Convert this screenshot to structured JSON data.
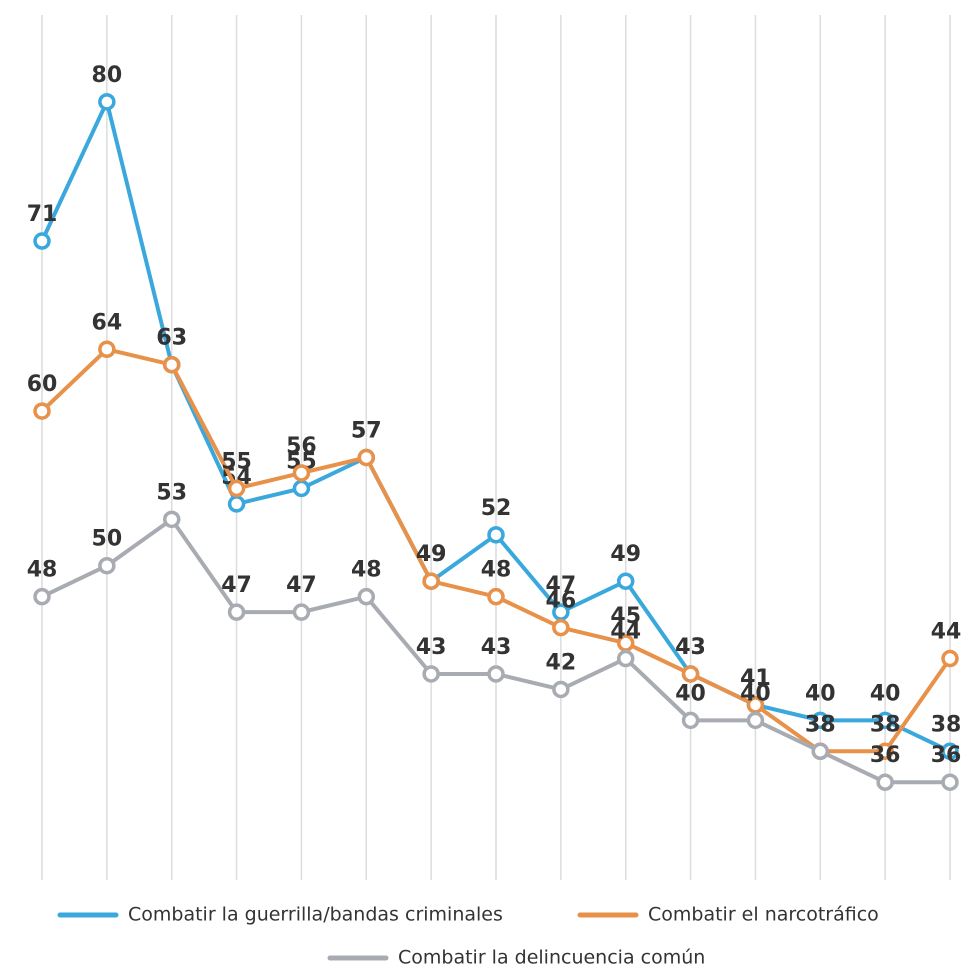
{
  "chart_data": {
    "type": "line",
    "categories": [
      null,
      null,
      null,
      null,
      null,
      null,
      null,
      null,
      null,
      null,
      null,
      null,
      null,
      null,
      null
    ],
    "series": [
      {
        "name": "Combatir la guerrilla/bandas criminales",
        "color": "#3aa8dc",
        "values": [
          71,
          80,
          63,
          54,
          55,
          57,
          49,
          52,
          47,
          49,
          43,
          41,
          40,
          40,
          38
        ]
      },
      {
        "name": "Combatir el narcotráfico",
        "color": "#e8914a",
        "values": [
          60,
          64,
          63,
          55,
          56,
          57,
          49,
          48,
          46,
          45,
          43,
          41,
          38,
          38,
          44
        ]
      },
      {
        "name": "Combatir la delincuencia común",
        "color": "#a8acb2",
        "values": [
          48,
          50,
          53,
          47,
          47,
          48,
          43,
          43,
          42,
          44,
          40,
          40,
          38,
          36,
          36
        ]
      }
    ],
    "ylim": [
      30,
      84
    ],
    "grid": true
  }
}
